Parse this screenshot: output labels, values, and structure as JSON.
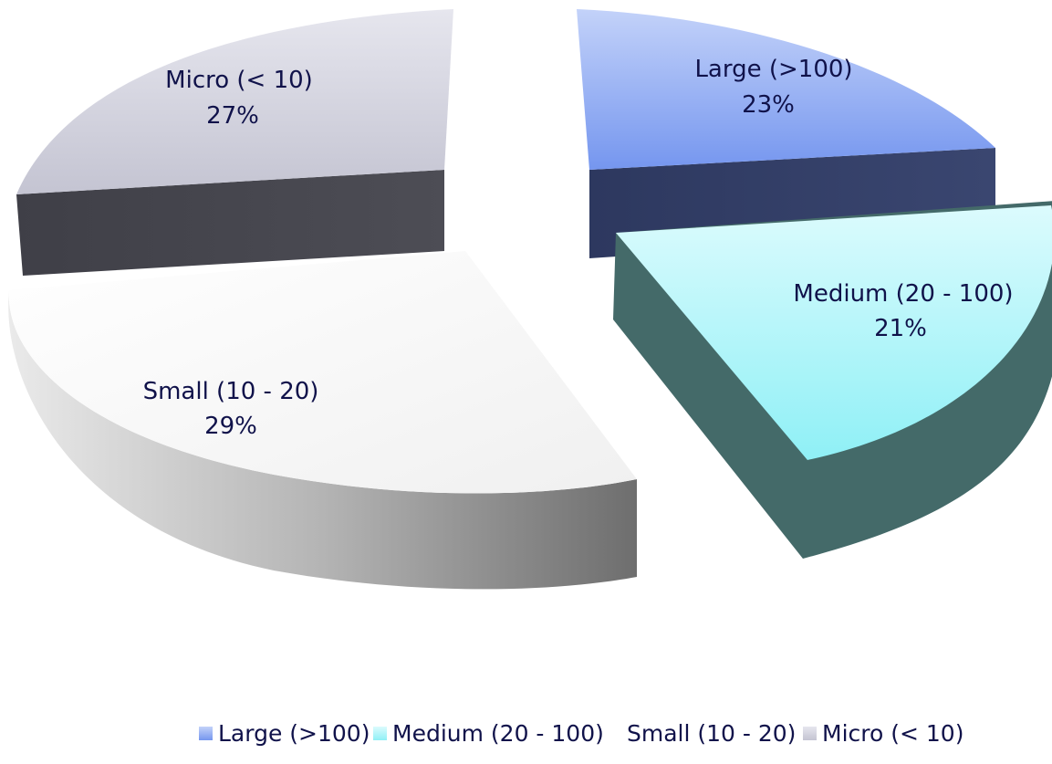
{
  "chart_data": {
    "type": "pie",
    "style": "3d-exploded",
    "title": "",
    "legend_position": "bottom",
    "slices": [
      {
        "label": "Large (>100)",
        "percent_label": "23%",
        "value": 23,
        "color": "#9bb4f2",
        "side_color": "#333f68"
      },
      {
        "label": "Medium (20 - 100)",
        "percent_label": "21%",
        "value": 21,
        "color": "#a2f2f6",
        "side_color": "#456b6a"
      },
      {
        "label": "Small (10 - 20)",
        "percent_label": "29%",
        "value": 29,
        "color": "#f8f8f8",
        "side_color": "#a3a3a3"
      },
      {
        "label": "Micro (< 10)",
        "percent_label": "27%",
        "value": 27,
        "color": "#d2d2de",
        "side_color": "#47474f"
      }
    ]
  }
}
